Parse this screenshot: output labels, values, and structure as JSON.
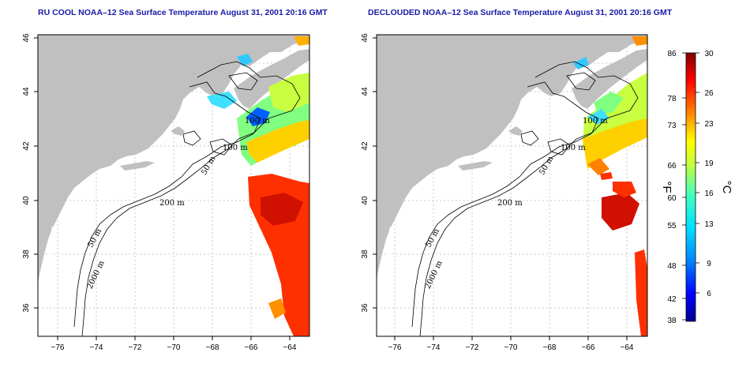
{
  "titles": {
    "left": "RU COOL NOAA–12 Sea Surface Temperature August 31, 2001 20:16 GMT",
    "right": "DECLOUDED NOAA–12 Sea Surface Temperature August 31, 2001 20:16 GMT"
  },
  "axes": {
    "x_ticks": [
      "−76",
      "−74",
      "−72",
      "−70",
      "−68",
      "−66",
      "−64"
    ],
    "y_ticks": [
      "36",
      "38",
      "40",
      "42",
      "44",
      "46"
    ]
  },
  "contour_labels": {
    "m100_upper": "100 m",
    "m100_lower": "100 m",
    "m50_mid": "50 m",
    "m200": "200 m",
    "m50_south": "50 m",
    "m2000": "2000 m"
  },
  "colorbar": {
    "unit_f": "°F",
    "unit_c": "°C",
    "fahrenheit_ticks": [
      "86",
      "78",
      "73",
      "66",
      "60",
      "55",
      "48",
      "42",
      "38"
    ],
    "celsius_ticks": [
      "30",
      "26",
      "23",
      "19",
      "16",
      "13",
      "9",
      "6"
    ],
    "colors": [
      "#00008f",
      "#0000ff",
      "#0080ff",
      "#00e0ff",
      "#40ff c0",
      "#c0ff40",
      "#ffff00",
      "#ff8000",
      "#ff0000",
      "#800000"
    ]
  },
  "colors": {
    "land": "#c0c0c0",
    "ocean": "#ffffff",
    "title": "#1a1aa6",
    "grid": "#bbbbbb"
  }
}
